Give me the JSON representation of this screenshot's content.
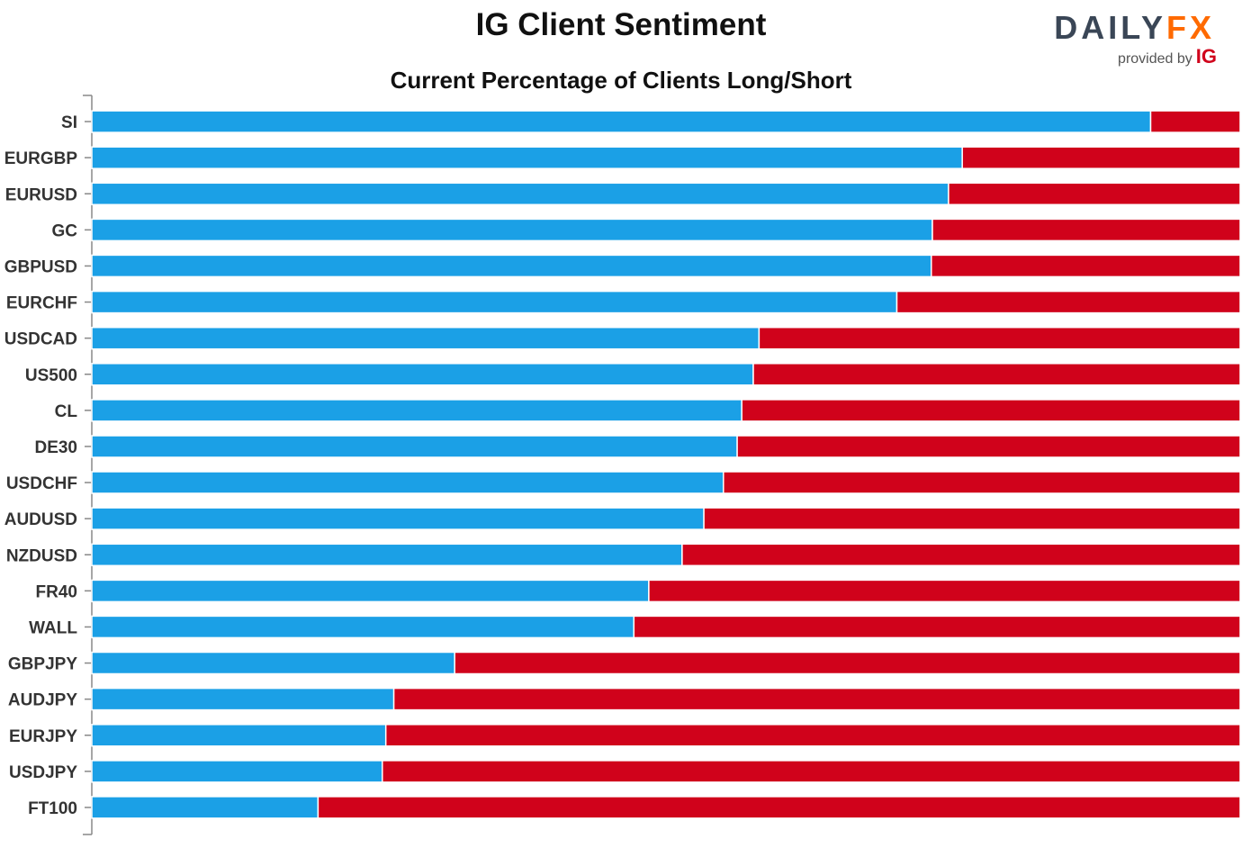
{
  "chart_data": {
    "type": "bar",
    "orientation": "horizontal",
    "stacked": true,
    "title": "IG Client Sentiment",
    "subtitle": "Current Percentage of Clients Long/Short",
    "categories": [
      "SI",
      "EURGBP",
      "EURUSD",
      "GC",
      "GBPUSD",
      "EURCHF",
      "USDCAD",
      "US500",
      "CL",
      "DE30",
      "USDCHF",
      "AUDUSD",
      "NZDUSD",
      "FR40",
      "WALL",
      "GBPJPY",
      "AUDJPY",
      "EURJPY",
      "USDJPY",
      "FT100"
    ],
    "series": [
      {
        "color": "#1ba0e6",
        "values": [
          92.2,
          75.8,
          74.6,
          73.2,
          73.1,
          70.1,
          58.1,
          57.6,
          56.6,
          56.2,
          55.0,
          53.3,
          51.4,
          48.5,
          47.2,
          31.6,
          26.3,
          25.6,
          25.3,
          19.7
        ]
      },
      {
        "color": "#d0021b",
        "values": [
          7.8,
          24.2,
          25.4,
          26.8,
          26.9,
          29.9,
          41.9,
          42.4,
          43.4,
          43.8,
          45.0,
          46.7,
          48.6,
          51.5,
          52.8,
          68.4,
          73.7,
          74.4,
          74.7,
          80.3
        ]
      }
    ],
    "xlim": [
      0,
      100
    ],
    "grid": false,
    "legend": "none"
  },
  "logo": {
    "brand_left": "DAILY",
    "brand_right": "FX",
    "provided_by": "provided by",
    "provider": "IG",
    "colors": {
      "brand_dark": "#3a4656",
      "brand_accent": "#ff6a00",
      "provider": "#d0021b"
    }
  }
}
